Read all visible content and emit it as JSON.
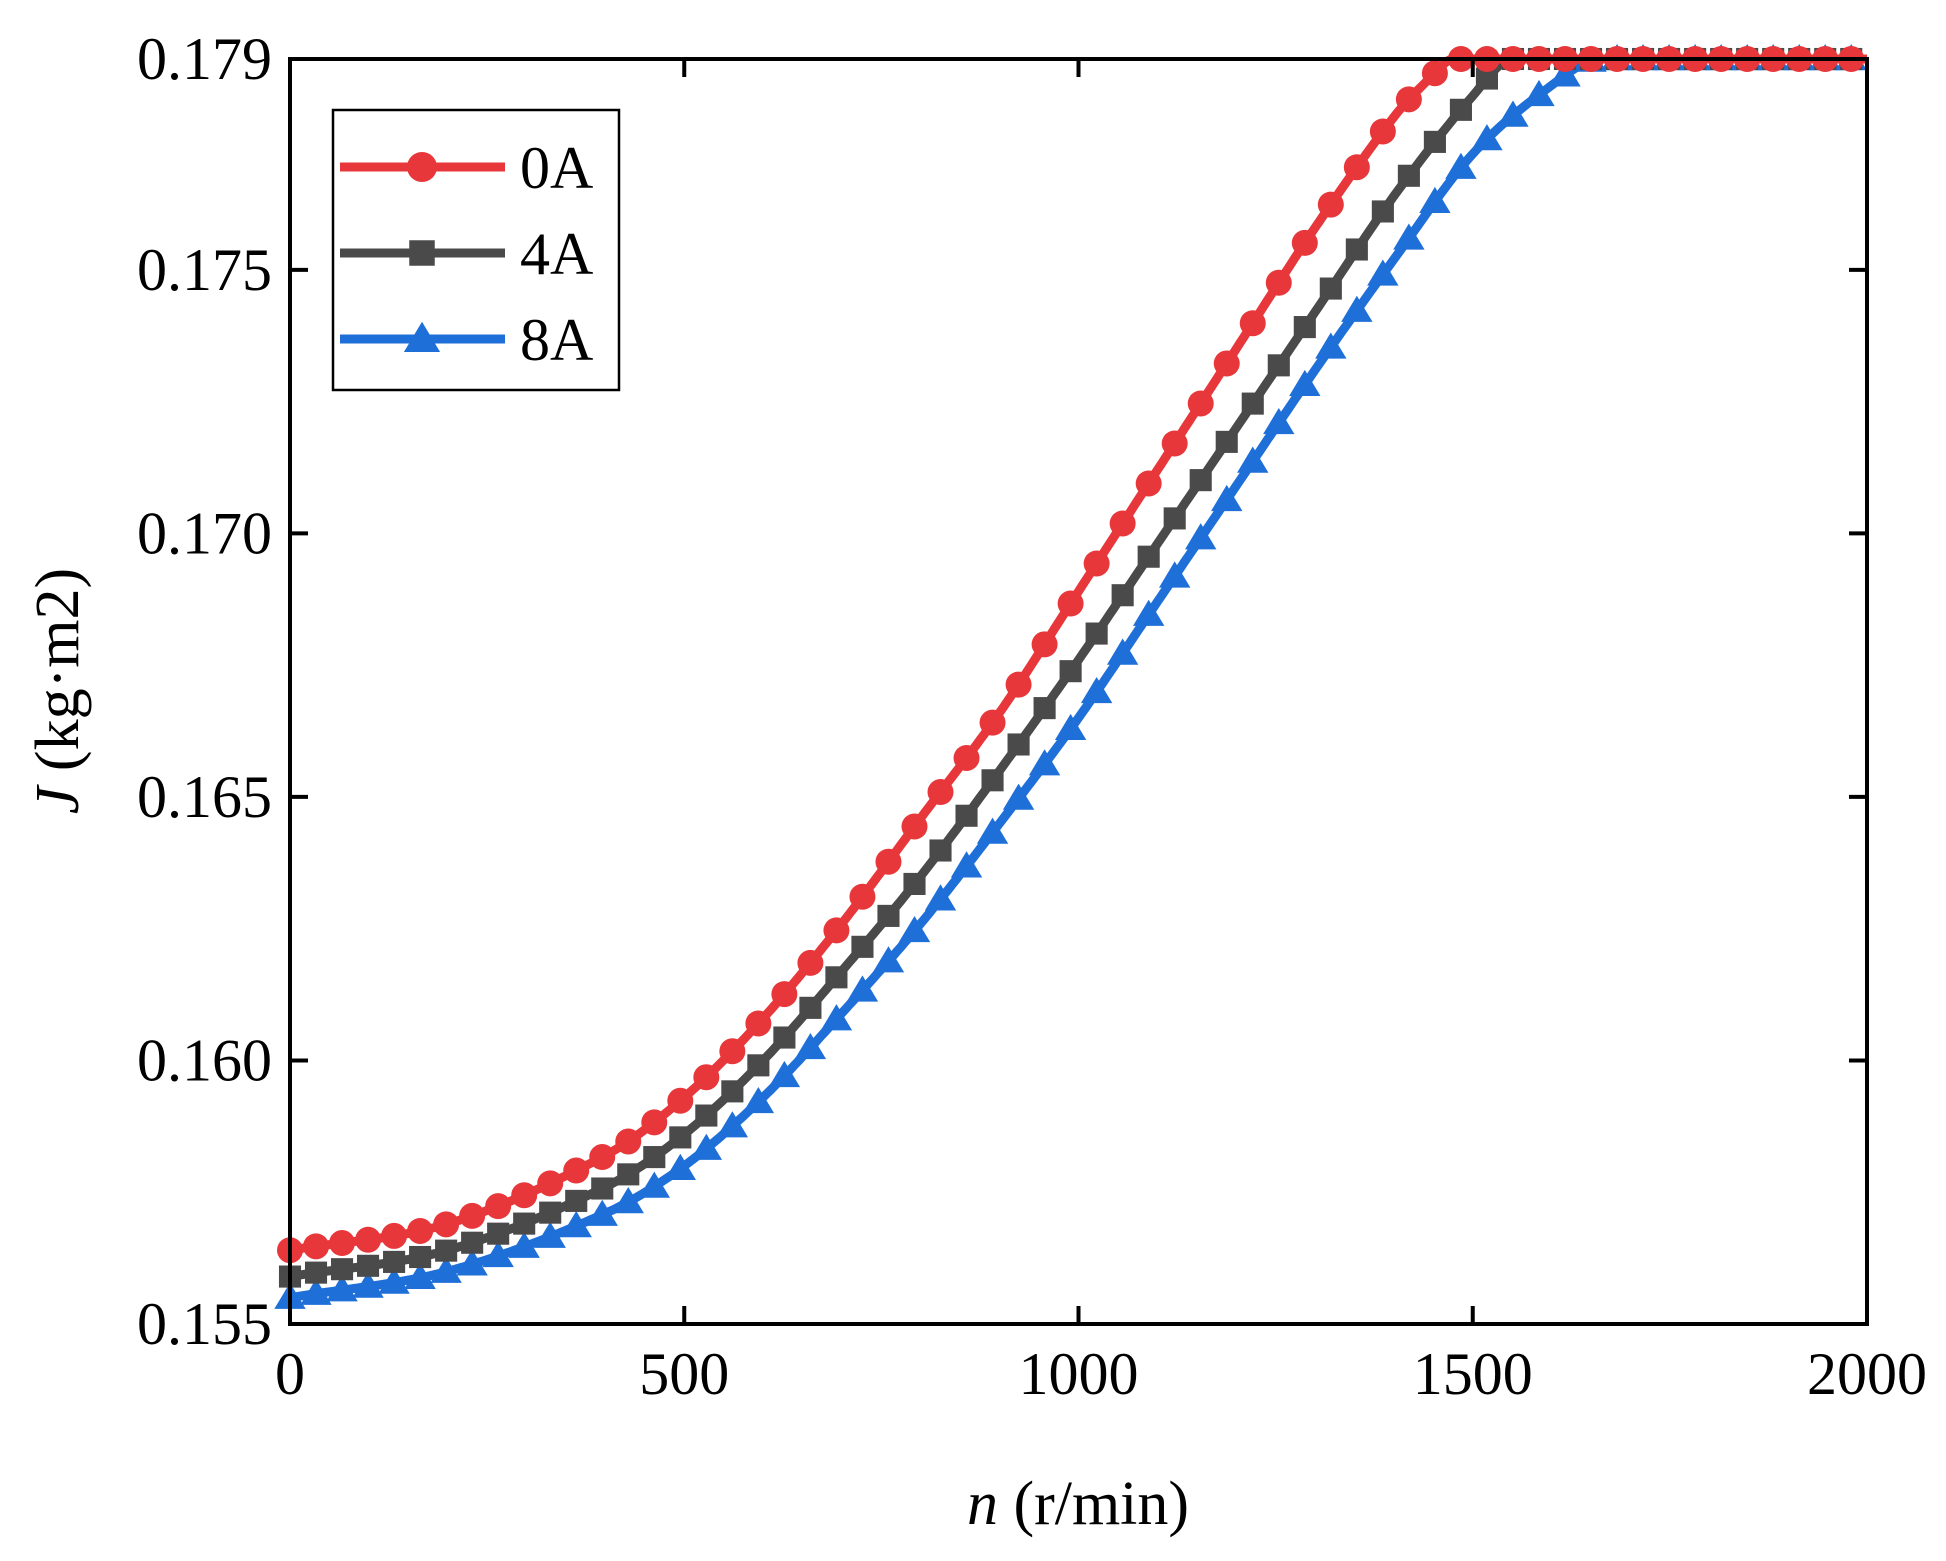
{
  "chart_data": {
    "type": "line",
    "title": "",
    "xlabel_var": "n",
    "xlabel_unit": " (r/min)",
    "ylabel_var": "J",
    "ylabel_unit": " (kg·m2)",
    "xlim": [
      0,
      2000
    ],
    "ylim": [
      0.155,
      0.179
    ],
    "x_ticks": [
      0,
      500,
      1000,
      1500,
      2000
    ],
    "x_tick_labels": [
      "0",
      "500",
      "1000",
      "1500",
      "2000"
    ],
    "y_ticks": [
      0.155,
      0.16,
      0.165,
      0.17,
      0.175,
      0.179
    ],
    "y_tick_labels": [
      "0.155",
      "0.160",
      "0.165",
      "0.170",
      "0.175",
      "0.179"
    ],
    "grid": false,
    "legend_position": "top-left",
    "series": [
      {
        "name": "0A",
        "color": "#e8373a",
        "marker": "circle",
        "x": [
          0,
          200,
          400,
          500,
          600,
          700,
          800,
          900,
          1000,
          1100,
          1200,
          1300,
          1400,
          1450,
          1475,
          2000
        ],
        "y": [
          0.1564,
          0.1569,
          0.1582,
          0.1593,
          0.1608,
          0.1626,
          0.1646,
          0.1666,
          0.1689,
          0.1712,
          0.1735,
          0.1758,
          0.1779,
          0.1787,
          0.179,
          0.179
        ]
      },
      {
        "name": "4A",
        "color": "#4a4a4a",
        "marker": "square",
        "x": [
          0,
          200,
          400,
          500,
          600,
          700,
          800,
          900,
          1000,
          1100,
          1200,
          1300,
          1400,
          1500,
          1550,
          2000
        ],
        "y": [
          0.1559,
          0.1564,
          0.1576,
          0.1586,
          0.16,
          0.1617,
          0.1635,
          0.1655,
          0.1676,
          0.1698,
          0.172,
          0.1742,
          0.1764,
          0.1783,
          0.179,
          0.179
        ]
      },
      {
        "name": "8A",
        "color": "#1f6fd9",
        "marker": "triangle",
        "x": [
          0,
          200,
          400,
          500,
          600,
          700,
          800,
          900,
          1000,
          1100,
          1200,
          1300,
          1400,
          1500,
          1600,
          1660,
          2000
        ],
        "y": [
          0.1555,
          0.156,
          0.1571,
          0.158,
          0.1593,
          0.1609,
          0.1626,
          0.1645,
          0.1665,
          0.1687,
          0.1709,
          0.1731,
          0.1752,
          0.1772,
          0.1785,
          0.179,
          0.179
        ]
      }
    ]
  }
}
